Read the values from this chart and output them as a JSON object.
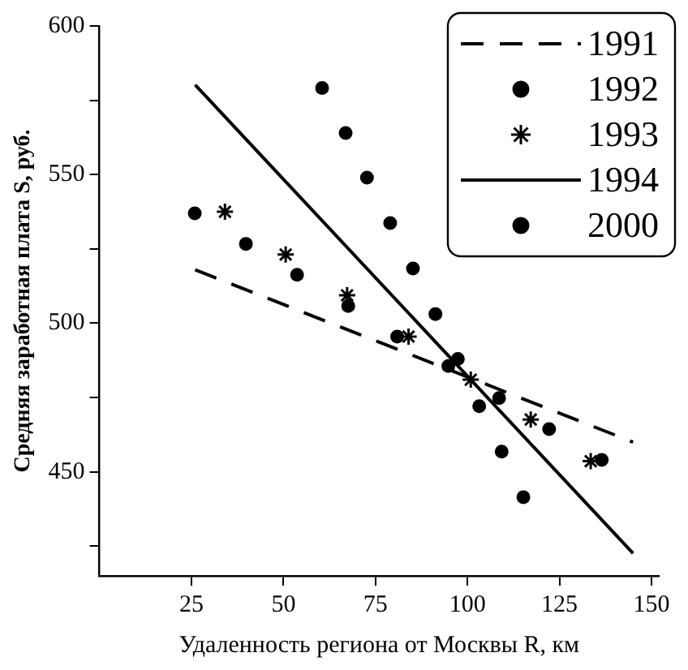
{
  "chart_data": {
    "type": "scatter",
    "xlabel": "Удаленность региона от Москвы R, км",
    "ylabel": "Средняя заработная плата S, руб.",
    "xlim": [
      0,
      152
    ],
    "xticks": [
      25,
      50,
      75,
      100,
      125,
      150
    ],
    "ylim": [
      415,
      600
    ],
    "yticks": [
      {
        "value": 425,
        "label": null
      },
      450,
      {
        "value": 475,
        "label": null
      },
      500,
      {
        "value": 525,
        "label": null
      },
      550,
      {
        "value": 575,
        "label": null
      },
      600
    ],
    "grid": false,
    "legend": "top right",
    "series": [
      {
        "name": "1991",
        "type": "line",
        "line_style": "dashed",
        "marker": "none",
        "color": "#000000",
        "x": [
          26,
          145
        ],
        "values": [
          518,
          460
        ]
      },
      {
        "name": "1992",
        "marker": "circle",
        "color": "#000000",
        "x": [
          25.9,
          39.8,
          53.7,
          67.6,
          80.9,
          94.8,
          108.6,
          122.2,
          136.5
        ],
        "values": [
          537,
          526.7,
          516.3,
          505.8,
          495.5,
          485.6,
          474.8,
          464.4,
          454
        ]
      },
      {
        "name": "1993",
        "marker": "cross",
        "color": "#000000",
        "x": [
          34.1,
          50.6,
          67.3,
          84,
          100.9,
          117.2,
          133.5
        ],
        "values": [
          537.5,
          523.1,
          509.4,
          495.5,
          481,
          467.6,
          453.6
        ]
      },
      {
        "name": "1994",
        "type": "line",
        "line_style": "solid",
        "marker": "none",
        "color": "#000000",
        "x": [
          26,
          145
        ],
        "values": [
          580.2,
          422.6
        ]
      },
      {
        "name": "2000",
        "marker": "circle",
        "color": "#000000",
        "x": [
          60.5,
          66.9,
          72.7,
          79,
          85.2,
          91.3,
          97.4,
          103.2,
          109.3,
          115.2
        ],
        "values": [
          579.1,
          564,
          549,
          533.7,
          518.4,
          503.1,
          488,
          472.1,
          456.8,
          441.5
        ]
      }
    ]
  }
}
